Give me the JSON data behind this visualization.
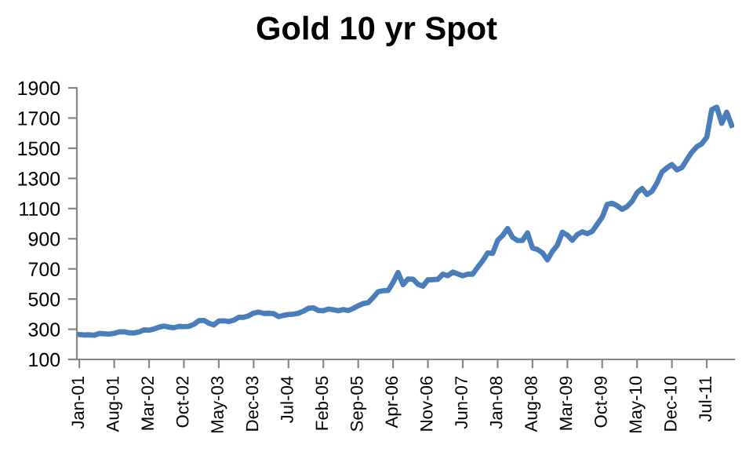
{
  "chart_data": {
    "type": "line",
    "title": "Gold 10 yr Spot",
    "categories": [
      "Jan-01",
      null,
      null,
      null,
      null,
      null,
      null,
      "Aug-01",
      null,
      null,
      null,
      null,
      null,
      null,
      "Mar-02",
      null,
      null,
      null,
      null,
      null,
      null,
      "Oct-02",
      null,
      null,
      null,
      null,
      null,
      null,
      "May-03",
      null,
      null,
      null,
      null,
      null,
      null,
      "Dec-03",
      null,
      null,
      null,
      null,
      null,
      null,
      "Jul-04",
      null,
      null,
      null,
      null,
      null,
      null,
      "Feb-05",
      null,
      null,
      null,
      null,
      null,
      null,
      "Sep-05",
      null,
      null,
      null,
      null,
      null,
      null,
      "Apr-06",
      null,
      null,
      null,
      null,
      null,
      null,
      "Nov-06",
      null,
      null,
      null,
      null,
      null,
      null,
      "Jun-07",
      null,
      null,
      null,
      null,
      null,
      null,
      "Jan-08",
      null,
      null,
      null,
      null,
      null,
      null,
      "Aug-08",
      null,
      null,
      null,
      null,
      null,
      null,
      "Mar-09",
      null,
      null,
      null,
      null,
      null,
      null,
      "Oct-09",
      null,
      null,
      null,
      null,
      null,
      null,
      "May-10",
      null,
      null,
      null,
      null,
      null,
      null,
      "Dec-10",
      null,
      null,
      null,
      null,
      null,
      null,
      "Jul-11",
      null,
      null,
      null,
      null,
      null
    ],
    "series": [
      {
        "color": "#4a7ebb",
        "values": [
          265,
          262,
          263,
          260,
          272,
          270,
          268,
          273,
          283,
          283,
          276,
          275,
          282,
          296,
          294,
          302,
          314,
          321,
          314,
          310,
          319,
          317,
          319,
          333,
          357,
          359,
          340,
          328,
          355,
          356,
          351,
          360,
          379,
          379,
          389,
          407,
          414,
          405,
          406,
          404,
          384,
          392,
          398,
          400,
          406,
          420,
          439,
          442,
          424,
          423,
          434,
          429,
          422,
          430,
          424,
          438,
          456,
          470,
          476,
          510,
          549,
          555,
          557,
          610,
          676,
          596,
          633,
          632,
          598,
          586,
          627,
          629,
          631,
          665,
          655,
          679,
          667,
          655,
          665,
          665,
          712,
          754,
          806,
          803,
          889,
          922,
          968,
          909,
          888,
          889,
          939,
          839,
          829,
          806,
          760,
          816,
          858,
          943,
          924,
          890,
          928,
          946,
          934,
          949,
          996,
          1043,
          1127,
          1135,
          1118,
          1095,
          1113,
          1148,
          1205,
          1233,
          1193,
          1215,
          1270,
          1343,
          1370,
          1392,
          1356,
          1372,
          1424,
          1474,
          1510,
          1529,
          1573,
          1756,
          1772,
          1665,
          1739,
          1652
        ]
      }
    ],
    "ylim": [
      100,
      1900
    ],
    "yticks": [
      100,
      300,
      500,
      700,
      900,
      1100,
      1300,
      1500,
      1700,
      1900
    ],
    "grid": false,
    "legend": false,
    "marker": "none",
    "line_style": "solid"
  }
}
